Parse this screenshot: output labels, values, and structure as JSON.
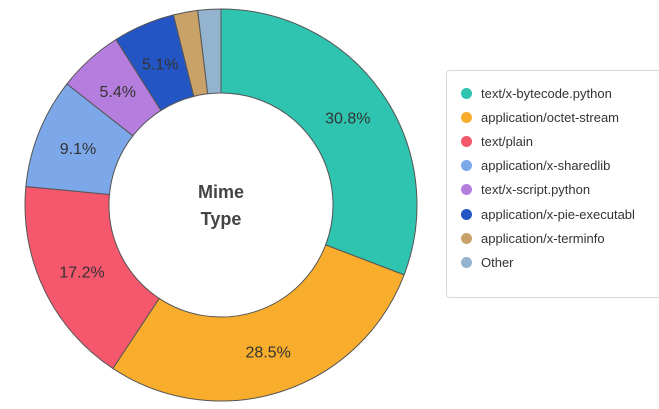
{
  "chart_data": {
    "type": "pie",
    "donut": true,
    "center_title": [
      "Mime",
      "Type"
    ],
    "legend_position": "right",
    "slices": [
      {
        "label": "text/x-bytecode.python",
        "value": 30.8,
        "display": "30.8%",
        "color": "#2ec4b0"
      },
      {
        "label": "application/octet-stream",
        "value": 28.5,
        "display": "28.5%",
        "color": "#f9ad2c"
      },
      {
        "label": "text/plain",
        "value": 17.2,
        "display": "17.2%",
        "color": "#f5576c"
      },
      {
        "label": "application/x-sharedlib",
        "value": 9.1,
        "display": "9.1%",
        "color": "#7ca8ea"
      },
      {
        "label": "text/x-script.python",
        "value": 5.4,
        "display": "5.4%",
        "color": "#b57ede"
      },
      {
        "label": "application/x-pie-executabl",
        "value": 5.1,
        "display": "5.1%",
        "color": "#2355c4"
      },
      {
        "label": "application/x-terminfo",
        "value": 2.0,
        "display": "",
        "color": "#c9a26a"
      },
      {
        "label": "Other",
        "value": 1.9,
        "display": "",
        "color": "#94b3cf"
      }
    ]
  }
}
